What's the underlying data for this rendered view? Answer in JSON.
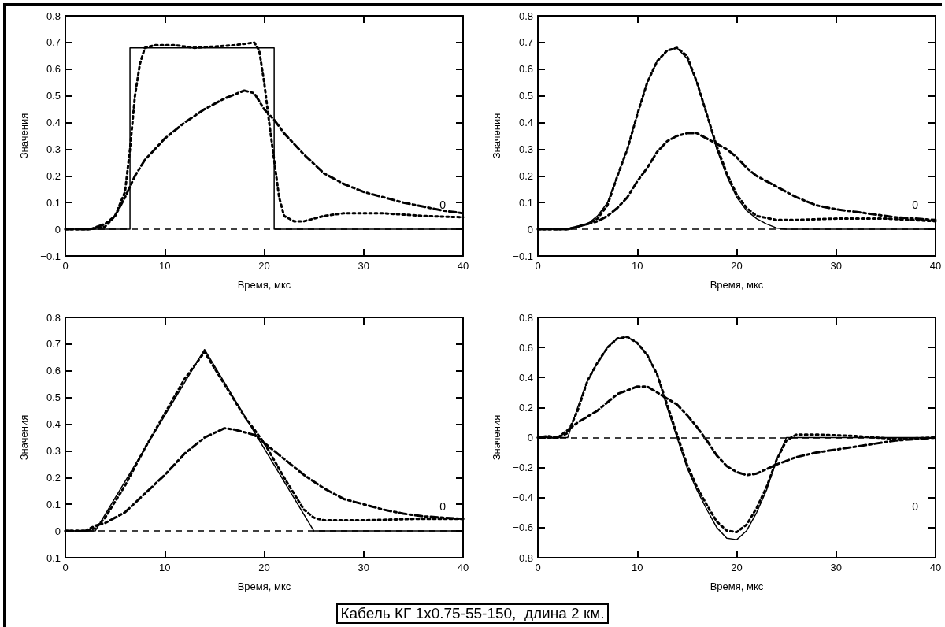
{
  "chart_data": [
    {
      "type": "line",
      "xlabel": "Время, мкс",
      "ylabel": "Значения",
      "xlim": [
        0,
        40
      ],
      "xticks": [
        0,
        10,
        20,
        30,
        40
      ],
      "ylim": [
        -0.1,
        0.8
      ],
      "yticks": [
        {
          "value": -0.1,
          "label": "−0.1"
        },
        0,
        0.1,
        0.2,
        0.3,
        0.4,
        0.5,
        0.6,
        0.7,
        0.8
      ],
      "grid": false,
      "marker": "none",
      "ref_lines": [
        {
          "axis": "y",
          "value": 0,
          "color": "#000000",
          "line_style": "dashed"
        }
      ],
      "annotations": [
        "0"
      ],
      "series": [
        {
          "color": "#000000",
          "line_style": "solid",
          "x": [
            0,
            6.5,
            6.5,
            21,
            21,
            40
          ],
          "values": [
            0,
            0,
            0.68,
            0.68,
            0,
            0
          ]
        },
        {
          "color": "#000000",
          "line_style": "dotted",
          "x": [
            0,
            2.5,
            4,
            5,
            6,
            6.5,
            7,
            7.5,
            8,
            9,
            11,
            13,
            15,
            17,
            19,
            19.5,
            20,
            20.5,
            21,
            21.5,
            22,
            23,
            24,
            26,
            28,
            32,
            36,
            40
          ],
          "values": [
            0,
            0,
            0.01,
            0.05,
            0.14,
            0.3,
            0.5,
            0.62,
            0.68,
            0.69,
            0.69,
            0.68,
            0.685,
            0.69,
            0.7,
            0.67,
            0.55,
            0.4,
            0.26,
            0.12,
            0.05,
            0.03,
            0.03,
            0.05,
            0.06,
            0.06,
            0.05,
            0.045
          ]
        },
        {
          "color": "#000000",
          "line_style": "dashdot",
          "x": [
            0,
            2.5,
            4,
            5,
            6,
            7,
            8,
            9,
            10,
            12,
            14,
            16,
            18,
            19,
            20,
            21,
            22,
            24,
            26,
            28,
            30,
            32,
            34,
            36,
            38,
            40
          ],
          "values": [
            0,
            0,
            0.02,
            0.05,
            0.12,
            0.2,
            0.26,
            0.3,
            0.34,
            0.4,
            0.45,
            0.49,
            0.52,
            0.51,
            0.45,
            0.41,
            0.36,
            0.28,
            0.21,
            0.17,
            0.14,
            0.12,
            0.1,
            0.085,
            0.07,
            0.06
          ]
        }
      ]
    },
    {
      "type": "line",
      "xlabel": "Время, мкс",
      "ylabel": "Значения",
      "xlim": [
        0,
        40
      ],
      "xticks": [
        0,
        10,
        20,
        30,
        40
      ],
      "ylim": [
        -0.1,
        0.8
      ],
      "yticks": [
        {
          "value": -0.1,
          "label": "−0.1"
        },
        0,
        0.1,
        0.2,
        0.3,
        0.4,
        0.5,
        0.6,
        0.7,
        0.8
      ],
      "grid": false,
      "marker": "none",
      "ref_lines": [
        {
          "axis": "y",
          "value": 0,
          "color": "#000000",
          "line_style": "dashed"
        }
      ],
      "annotations": [
        "0"
      ],
      "series": [
        {
          "color": "#000000",
          "line_style": "solid",
          "x": [
            0,
            3,
            4,
            5,
            6,
            7,
            8,
            9,
            10,
            11,
            12,
            13,
            14,
            15,
            16,
            17,
            18,
            19,
            20,
            21,
            22,
            23,
            24,
            25,
            40
          ],
          "values": [
            0,
            0,
            0.01,
            0.02,
            0.05,
            0.1,
            0.2,
            0.3,
            0.43,
            0.55,
            0.63,
            0.67,
            0.68,
            0.64,
            0.55,
            0.43,
            0.3,
            0.2,
            0.12,
            0.07,
            0.04,
            0.02,
            0.005,
            0,
            0
          ]
        },
        {
          "color": "#000000",
          "line_style": "dotted",
          "x": [
            0,
            3,
            5,
            6,
            7,
            8,
            9,
            10,
            11,
            12,
            13,
            14,
            15,
            16,
            17,
            18,
            19,
            20,
            21,
            22,
            24,
            26,
            30,
            35,
            40
          ],
          "values": [
            0,
            0,
            0.02,
            0.04,
            0.09,
            0.2,
            0.3,
            0.43,
            0.55,
            0.63,
            0.67,
            0.68,
            0.65,
            0.55,
            0.43,
            0.31,
            0.21,
            0.13,
            0.08,
            0.05,
            0.035,
            0.035,
            0.04,
            0.04,
            0.03
          ]
        },
        {
          "color": "#000000",
          "line_style": "dashdot",
          "x": [
            0,
            3,
            5,
            6,
            7,
            8,
            9,
            10,
            11,
            12,
            13,
            14,
            15,
            16,
            17,
            18,
            19,
            20,
            21,
            22,
            24,
            26,
            28,
            30,
            32,
            34,
            36,
            38,
            40
          ],
          "values": [
            0,
            0,
            0.02,
            0.03,
            0.05,
            0.08,
            0.12,
            0.18,
            0.23,
            0.29,
            0.33,
            0.35,
            0.36,
            0.36,
            0.34,
            0.32,
            0.3,
            0.27,
            0.23,
            0.2,
            0.16,
            0.12,
            0.09,
            0.075,
            0.065,
            0.055,
            0.045,
            0.04,
            0.035
          ]
        }
      ]
    },
    {
      "type": "line",
      "xlabel": "Время, мкс",
      "ylabel": "Значения",
      "xlim": [
        0,
        40
      ],
      "xticks": [
        0,
        10,
        20,
        30,
        40
      ],
      "ylim": [
        -0.1,
        0.8
      ],
      "yticks": [
        {
          "value": -0.1,
          "label": "−0.1"
        },
        0,
        0.1,
        0.2,
        0.3,
        0.4,
        0.5,
        0.6,
        0.7,
        0.8
      ],
      "grid": false,
      "marker": "none",
      "ref_lines": [
        {
          "axis": "y",
          "value": 0,
          "color": "#000000",
          "line_style": "dashed"
        }
      ],
      "annotations": [
        "0"
      ],
      "series": [
        {
          "color": "#000000",
          "line_style": "solid",
          "x": [
            0,
            3,
            14,
            25,
            40
          ],
          "values": [
            0,
            0,
            0.68,
            0,
            0
          ]
        },
        {
          "color": "#000000",
          "line_style": "dotted",
          "x": [
            0,
            2,
            3,
            4,
            6,
            8,
            10,
            12,
            14,
            16,
            18,
            20,
            22,
            23,
            24,
            25,
            26,
            30,
            35,
            40
          ],
          "values": [
            0,
            0,
            0.01,
            0.05,
            0.17,
            0.31,
            0.44,
            0.57,
            0.67,
            0.55,
            0.43,
            0.33,
            0.2,
            0.14,
            0.08,
            0.05,
            0.04,
            0.04,
            0.045,
            0.045
          ]
        },
        {
          "color": "#000000",
          "line_style": "dashdot",
          "x": [
            0,
            2,
            3,
            4,
            5,
            6,
            8,
            10,
            12,
            14,
            16,
            17,
            18,
            19,
            20,
            22,
            24,
            26,
            28,
            30,
            32,
            34,
            36,
            38,
            40
          ],
          "values": [
            0,
            0,
            0.02,
            0.03,
            0.05,
            0.07,
            0.14,
            0.21,
            0.29,
            0.35,
            0.385,
            0.38,
            0.37,
            0.36,
            0.33,
            0.27,
            0.21,
            0.16,
            0.12,
            0.1,
            0.08,
            0.065,
            0.055,
            0.05,
            0.045
          ]
        }
      ]
    },
    {
      "type": "line",
      "xlabel": "Время, мкс",
      "ylabel": "Значения",
      "xlim": [
        0,
        40
      ],
      "xticks": [
        0,
        10,
        20,
        30,
        40
      ],
      "ylim": [
        -0.8,
        0.8
      ],
      "yticks": [
        {
          "value": -0.8,
          "label": "−0.8"
        },
        {
          "value": -0.6,
          "label": "−0.6"
        },
        {
          "value": -0.4,
          "label": "−0.4"
        },
        {
          "value": -0.2,
          "label": "−0.2"
        },
        0,
        0.2,
        0.4,
        0.6,
        0.8
      ],
      "grid": false,
      "marker": "none",
      "ref_lines": [
        {
          "axis": "y",
          "value": 0,
          "color": "#000000",
          "line_style": "dashed"
        }
      ],
      "annotations": [
        "0",
        "Кабель КГ 1x0.75-55-150,  длина 2 км."
      ],
      "series": [
        {
          "color": "#000000",
          "line_style": "solid",
          "x": [
            0,
            3,
            4,
            5,
            6,
            7,
            8,
            9,
            10,
            11,
            12,
            13,
            14,
            15,
            16,
            17,
            18,
            19,
            20,
            21,
            22,
            23,
            24,
            25,
            40
          ],
          "values": [
            0,
            0,
            0.2,
            0.38,
            0.5,
            0.6,
            0.66,
            0.67,
            0.63,
            0.55,
            0.42,
            0.2,
            0,
            -0.2,
            -0.35,
            -0.48,
            -0.6,
            -0.67,
            -0.68,
            -0.62,
            -0.5,
            -0.35,
            -0.15,
            0,
            0
          ]
        },
        {
          "color": "#000000",
          "line_style": "dotted",
          "x": [
            0,
            1,
            2,
            3,
            4,
            5,
            6,
            7,
            8,
            9,
            10,
            11,
            12,
            13,
            14,
            15,
            16,
            17,
            18,
            19,
            20,
            21,
            22,
            23,
            24,
            25,
            26,
            28,
            32,
            36,
            40
          ],
          "values": [
            0,
            0.01,
            0,
            0.03,
            0.18,
            0.38,
            0.5,
            0.6,
            0.66,
            0.67,
            0.63,
            0.55,
            0.42,
            0.22,
            0.02,
            -0.18,
            -0.33,
            -0.45,
            -0.56,
            -0.62,
            -0.63,
            -0.58,
            -0.47,
            -0.33,
            -0.15,
            -0.02,
            0.02,
            0.02,
            0.01,
            -0.01,
            0
          ]
        },
        {
          "color": "#000000",
          "line_style": "dashdot",
          "x": [
            0,
            2,
            3,
            4,
            6,
            8,
            10,
            11,
            12,
            13,
            14,
            15,
            16,
            17,
            18,
            19,
            20,
            21,
            22,
            23,
            24,
            26,
            28,
            30,
            32,
            34,
            36,
            38,
            40
          ],
          "values": [
            0,
            0,
            0.05,
            0.1,
            0.18,
            0.29,
            0.34,
            0.34,
            0.3,
            0.26,
            0.22,
            0.15,
            0.07,
            -0.02,
            -0.12,
            -0.19,
            -0.23,
            -0.25,
            -0.24,
            -0.21,
            -0.18,
            -0.13,
            -0.1,
            -0.08,
            -0.06,
            -0.04,
            -0.02,
            -0.01,
            0
          ]
        }
      ]
    }
  ]
}
